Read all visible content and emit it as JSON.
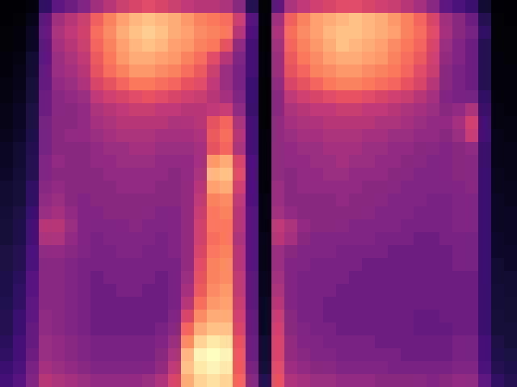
{
  "chart_data": {
    "type": "heatmap",
    "color": "magma",
    "tick_labels": false,
    "z": [
      [
        4,
        4,
        6,
        20,
        30,
        34,
        38,
        45,
        50,
        55,
        58,
        60,
        58,
        55,
        52,
        50,
        50,
        48,
        40,
        18,
        5,
        30,
        48,
        52,
        56,
        58,
        60,
        60,
        58,
        56,
        54,
        50,
        46,
        40,
        30,
        26,
        22,
        12,
        4,
        4
      ],
      [
        4,
        5,
        8,
        30,
        45,
        50,
        55,
        65,
        72,
        78,
        82,
        84,
        82,
        80,
        76,
        72,
        70,
        68,
        55,
        28,
        6,
        45,
        65,
        72,
        78,
        80,
        82,
        84,
        82,
        80,
        76,
        72,
        66,
        58,
        45,
        40,
        34,
        18,
        5,
        4
      ],
      [
        5,
        6,
        10,
        32,
        48,
        52,
        56,
        68,
        74,
        80,
        84,
        86,
        84,
        80,
        78,
        74,
        72,
        70,
        50,
        26,
        5,
        48,
        68,
        74,
        78,
        82,
        84,
        84,
        82,
        80,
        78,
        72,
        68,
        60,
        46,
        40,
        36,
        20,
        5,
        5
      ],
      [
        5,
        6,
        10,
        30,
        46,
        50,
        55,
        66,
        72,
        78,
        82,
        84,
        82,
        78,
        76,
        72,
        70,
        62,
        42,
        24,
        5,
        46,
        66,
        72,
        76,
        80,
        84,
        82,
        80,
        78,
        74,
        70,
        66,
        58,
        44,
        38,
        34,
        18,
        5,
        5
      ],
      [
        6,
        7,
        12,
        30,
        44,
        48,
        52,
        64,
        70,
        76,
        80,
        80,
        78,
        76,
        72,
        68,
        60,
        50,
        38,
        24,
        6,
        44,
        64,
        70,
        74,
        78,
        80,
        80,
        78,
        76,
        72,
        68,
        64,
        56,
        42,
        38,
        34,
        18,
        6,
        5
      ],
      [
        6,
        8,
        12,
        32,
        44,
        46,
        50,
        62,
        68,
        72,
        76,
        76,
        74,
        72,
        68,
        64,
        55,
        44,
        36,
        24,
        6,
        44,
        62,
        66,
        72,
        74,
        76,
        76,
        74,
        72,
        70,
        66,
        60,
        54,
        40,
        36,
        34,
        18,
        6,
        6
      ],
      [
        7,
        8,
        14,
        32,
        42,
        44,
        48,
        58,
        62,
        66,
        70,
        70,
        68,
        66,
        62,
        60,
        52,
        44,
        36,
        22,
        5,
        42,
        58,
        62,
        66,
        70,
        72,
        72,
        70,
        68,
        66,
        62,
        58,
        50,
        40,
        36,
        34,
        18,
        6,
        6
      ],
      [
        7,
        9,
        14,
        34,
        40,
        42,
        44,
        52,
        56,
        58,
        60,
        62,
        60,
        58,
        56,
        54,
        50,
        46,
        38,
        22,
        5,
        40,
        52,
        56,
        58,
        60,
        62,
        62,
        60,
        58,
        56,
        54,
        50,
        46,
        38,
        36,
        36,
        20,
        6,
        6
      ],
      [
        8,
        10,
        15,
        34,
        40,
        40,
        42,
        48,
        50,
        52,
        54,
        54,
        52,
        52,
        50,
        50,
        52,
        54,
        42,
        22,
        5,
        40,
        48,
        50,
        52,
        52,
        54,
        54,
        52,
        52,
        50,
        48,
        46,
        44,
        40,
        42,
        48,
        22,
        7,
        6
      ],
      [
        8,
        10,
        15,
        36,
        40,
        40,
        42,
        46,
        48,
        50,
        50,
        50,
        50,
        48,
        48,
        50,
        62,
        66,
        48,
        24,
        5,
        42,
        46,
        48,
        48,
        50,
        50,
        50,
        50,
        48,
        48,
        46,
        44,
        42,
        42,
        46,
        56,
        24,
        7,
        7
      ],
      [
        9,
        11,
        16,
        36,
        40,
        42,
        42,
        44,
        46,
        48,
        48,
        48,
        46,
        46,
        46,
        48,
        64,
        68,
        50,
        24,
        6,
        42,
        44,
        46,
        46,
        48,
        48,
        48,
        46,
        46,
        44,
        44,
        42,
        42,
        40,
        44,
        54,
        24,
        8,
        7
      ],
      [
        10,
        12,
        17,
        36,
        40,
        40,
        40,
        42,
        44,
        44,
        46,
        46,
        44,
        44,
        44,
        46,
        62,
        66,
        48,
        24,
        6,
        42,
        42,
        44,
        44,
        46,
        46,
        46,
        44,
        44,
        42,
        42,
        40,
        40,
        38,
        40,
        42,
        22,
        8,
        8
      ],
      [
        10,
        12,
        18,
        38,
        42,
        40,
        40,
        42,
        42,
        44,
        44,
        44,
        42,
        42,
        42,
        46,
        76,
        80,
        58,
        26,
        6,
        42,
        42,
        42,
        44,
        44,
        46,
        44,
        44,
        42,
        42,
        40,
        40,
        38,
        38,
        40,
        40,
        22,
        8,
        8
      ],
      [
        11,
        13,
        18,
        38,
        40,
        40,
        40,
        40,
        42,
        42,
        42,
        42,
        42,
        40,
        42,
        48,
        82,
        84,
        60,
        26,
        6,
        42,
        40,
        42,
        42,
        44,
        44,
        42,
        42,
        42,
        40,
        40,
        38,
        38,
        38,
        40,
        40,
        22,
        9,
        8
      ],
      [
        12,
        14,
        20,
        40,
        42,
        40,
        40,
        40,
        40,
        42,
        42,
        42,
        40,
        40,
        42,
        50,
        78,
        80,
        56,
        26,
        6,
        44,
        40,
        42,
        42,
        42,
        42,
        42,
        40,
        40,
        40,
        38,
        38,
        38,
        38,
        38,
        40,
        22,
        9,
        9
      ],
      [
        12,
        14,
        20,
        42,
        44,
        40,
        38,
        40,
        40,
        40,
        40,
        40,
        40,
        40,
        42,
        52,
        72,
        74,
        52,
        26,
        7,
        44,
        40,
        40,
        40,
        40,
        42,
        40,
        40,
        40,
        38,
        38,
        38,
        36,
        36,
        38,
        38,
        22,
        10,
        9
      ],
      [
        13,
        15,
        22,
        44,
        46,
        42,
        38,
        38,
        40,
        40,
        40,
        40,
        38,
        38,
        42,
        54,
        70,
        72,
        50,
        28,
        7,
        46,
        42,
        40,
        40,
        40,
        40,
        40,
        40,
        38,
        38,
        38,
        36,
        36,
        36,
        38,
        38,
        22,
        10,
        10
      ],
      [
        14,
        16,
        24,
        50,
        50,
        44,
        38,
        38,
        38,
        38,
        40,
        38,
        38,
        38,
        42,
        56,
        70,
        70,
        50,
        28,
        7,
        52,
        48,
        42,
        40,
        40,
        40,
        38,
        38,
        38,
        38,
        36,
        36,
        36,
        36,
        38,
        38,
        22,
        10,
        10
      ],
      [
        14,
        16,
        24,
        48,
        48,
        42,
        38,
        36,
        38,
        38,
        38,
        38,
        36,
        38,
        42,
        56,
        68,
        70,
        48,
        28,
        8,
        50,
        46,
        40,
        38,
        38,
        38,
        38,
        38,
        36,
        36,
        36,
        34,
        34,
        36,
        36,
        36,
        22,
        11,
        10
      ],
      [
        15,
        18,
        26,
        42,
        42,
        40,
        38,
        36,
        36,
        38,
        38,
        36,
        36,
        38,
        42,
        58,
        70,
        72,
        50,
        28,
        8,
        44,
        40,
        38,
        38,
        38,
        36,
        36,
        36,
        36,
        34,
        34,
        34,
        34,
        34,
        36,
        36,
        22,
        11,
        11
      ],
      [
        15,
        18,
        26,
        40,
        40,
        38,
        36,
        36,
        36,
        36,
        36,
        36,
        36,
        36,
        42,
        60,
        72,
        74,
        50,
        28,
        8,
        44,
        38,
        38,
        36,
        36,
        36,
        36,
        34,
        34,
        34,
        34,
        34,
        34,
        34,
        36,
        36,
        22,
        12,
        11
      ],
      [
        16,
        19,
        28,
        40,
        40,
        38,
        36,
        34,
        36,
        36,
        36,
        36,
        34,
        36,
        44,
        62,
        72,
        74,
        52,
        30,
        9,
        46,
        38,
        36,
        36,
        36,
        36,
        34,
        34,
        34,
        34,
        34,
        34,
        34,
        34,
        34,
        34,
        22,
        12,
        12
      ],
      [
        16,
        20,
        28,
        40,
        40,
        38,
        36,
        34,
        34,
        36,
        36,
        34,
        34,
        36,
        46,
        64,
        74,
        76,
        52,
        30,
        9,
        48,
        38,
        36,
        36,
        36,
        34,
        34,
        34,
        34,
        34,
        34,
        34,
        34,
        34,
        34,
        34,
        22,
        13,
        12
      ],
      [
        17,
        20,
        30,
        40,
        40,
        38,
        36,
        34,
        34,
        34,
        34,
        34,
        34,
        36,
        50,
        68,
        76,
        78,
        54,
        30,
        10,
        50,
        38,
        36,
        36,
        34,
        34,
        34,
        34,
        34,
        34,
        34,
        34,
        34,
        34,
        34,
        34,
        22,
        13,
        13
      ],
      [
        18,
        22,
        30,
        42,
        40,
        38,
        36,
        34,
        34,
        34,
        34,
        34,
        34,
        38,
        58,
        74,
        80,
        80,
        56,
        32,
        10,
        54,
        40,
        36,
        36,
        34,
        34,
        34,
        34,
        34,
        34,
        34,
        32,
        32,
        34,
        34,
        34,
        22,
        14,
        13
      ],
      [
        18,
        22,
        32,
        42,
        40,
        38,
        36,
        34,
        34,
        34,
        34,
        34,
        36,
        40,
        66,
        80,
        84,
        84,
        58,
        32,
        10,
        56,
        40,
        38,
        36,
        36,
        34,
        34,
        34,
        34,
        34,
        34,
        32,
        32,
        32,
        34,
        34,
        22,
        14,
        14
      ],
      [
        19,
        24,
        32,
        44,
        42,
        40,
        38,
        36,
        36,
        36,
        36,
        36,
        38,
        44,
        74,
        88,
        92,
        90,
        62,
        34,
        12,
        58,
        42,
        38,
        38,
        36,
        36,
        36,
        36,
        34,
        34,
        34,
        34,
        34,
        34,
        36,
        36,
        24,
        15,
        14
      ],
      [
        20,
        24,
        34,
        44,
        42,
        40,
        38,
        36,
        36,
        36,
        36,
        36,
        40,
        48,
        82,
        94,
        96,
        94,
        64,
        34,
        12,
        58,
        42,
        40,
        38,
        38,
        36,
        36,
        36,
        36,
        36,
        34,
        34,
        34,
        34,
        36,
        36,
        24,
        16,
        15
      ],
      [
        22,
        26,
        36,
        46,
        44,
        42,
        40,
        38,
        38,
        38,
        38,
        38,
        42,
        52,
        84,
        92,
        94,
        92,
        64,
        36,
        14,
        60,
        44,
        42,
        40,
        40,
        38,
        38,
        38,
        38,
        36,
        36,
        36,
        36,
        36,
        38,
        38,
        26,
        18,
        16
      ],
      [
        24,
        28,
        38,
        50,
        48,
        46,
        44,
        42,
        42,
        42,
        42,
        44,
        48,
        58,
        80,
        88,
        90,
        88,
        66,
        40,
        18,
        62,
        48,
        46,
        44,
        44,
        42,
        42,
        42,
        40,
        40,
        40,
        40,
        38,
        40,
        42,
        42,
        30,
        20,
        18
      ]
    ]
  }
}
